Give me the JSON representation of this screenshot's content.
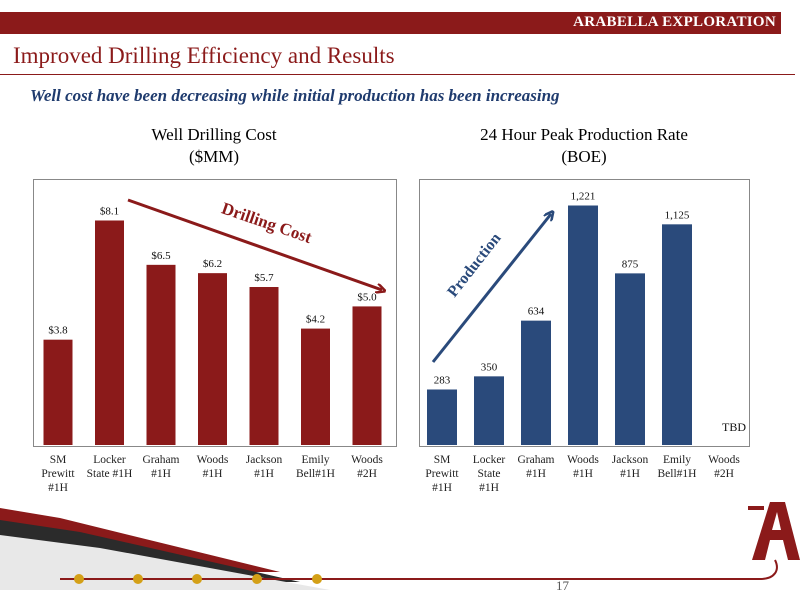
{
  "header": {
    "company": "ARABELLA EXPLORATION"
  },
  "page": {
    "title": "Improved Drilling Efficiency and Results",
    "subtitle": "Well cost have been decreasing while initial production has been increasing",
    "page_number": "17"
  },
  "colors": {
    "brand": "#8b1a1a",
    "cost_bar": "#8b1a1a",
    "production_bar": "#2a4a7b",
    "arrow_cost": "#8b1a1a",
    "arrow_production": "#2a4a7b"
  },
  "chart_data": [
    {
      "type": "bar",
      "title": "Well Drilling Cost\n($MM)",
      "categories": [
        "SM\nPrewitt\n#1H",
        "Locker\nState #1H",
        "Graham\n#1H",
        "Woods\n#1H",
        "Jackson\n#1H",
        "Emily\nBell#1H",
        "Woods\n#2H"
      ],
      "values": [
        3.8,
        8.1,
        6.5,
        6.2,
        5.7,
        4.2,
        5.0
      ],
      "data_labels": [
        "$3.8",
        "$8.1",
        "$6.5",
        "$6.2",
        "$5.7",
        "$4.2",
        "$5.0"
      ],
      "ylim": [
        0,
        9.2
      ],
      "annotation": "Drilling Cost",
      "grid": false
    },
    {
      "type": "bar",
      "title": "24 Hour Peak Production  Rate\n(BOE)",
      "categories": [
        "SM\nPrewitt\n#1H",
        "Locker\nState\n#1H",
        "Graham\n#1H",
        "Woods\n#1H",
        "Jackson\n#1H",
        "Emily\nBell#1H",
        "Woods\n#2H"
      ],
      "values": [
        283,
        350,
        634,
        1221,
        875,
        1125,
        null
      ],
      "data_labels": [
        "283",
        "350",
        "634",
        "1,221",
        "875",
        "1,125",
        "TBD"
      ],
      "ylim": [
        0,
        1300
      ],
      "annotation": "Production",
      "grid": false
    }
  ]
}
